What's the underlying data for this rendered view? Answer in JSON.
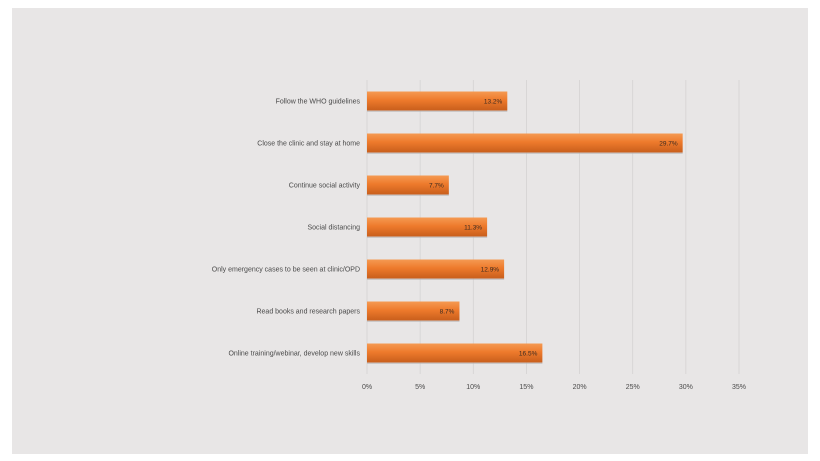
{
  "colors": {
    "background": "#e8e6e6",
    "bar": "#ee7a2c",
    "bar_top": "#f59a52",
    "bar_bottom": "#c85e1c",
    "grid": "#d4d2d2"
  },
  "chart_data": {
    "type": "bar",
    "orientation": "horizontal",
    "categories": [
      "Follow the WHO guidelines",
      "Close the clinic and stay at home",
      "Continue social activity",
      "Social distancing",
      "Only emergency cases to be seen at clinic/OPD",
      "Read books and research papers",
      "Online training/webinar, develop new skills"
    ],
    "values": [
      13.2,
      29.7,
      7.7,
      11.3,
      12.9,
      8.7,
      16.5
    ],
    "data_labels": [
      "13.2%",
      "29.7%",
      "7.7%",
      "11.3%",
      "12.9%",
      "8.7%",
      "16.5%"
    ],
    "xlim": [
      0,
      35
    ],
    "xticks": [
      0,
      5,
      10,
      15,
      20,
      25,
      30,
      35
    ],
    "xtick_labels": [
      "0%",
      "5%",
      "10%",
      "15%",
      "20%",
      "25%",
      "30%",
      "35%"
    ],
    "grid": "vertical"
  }
}
